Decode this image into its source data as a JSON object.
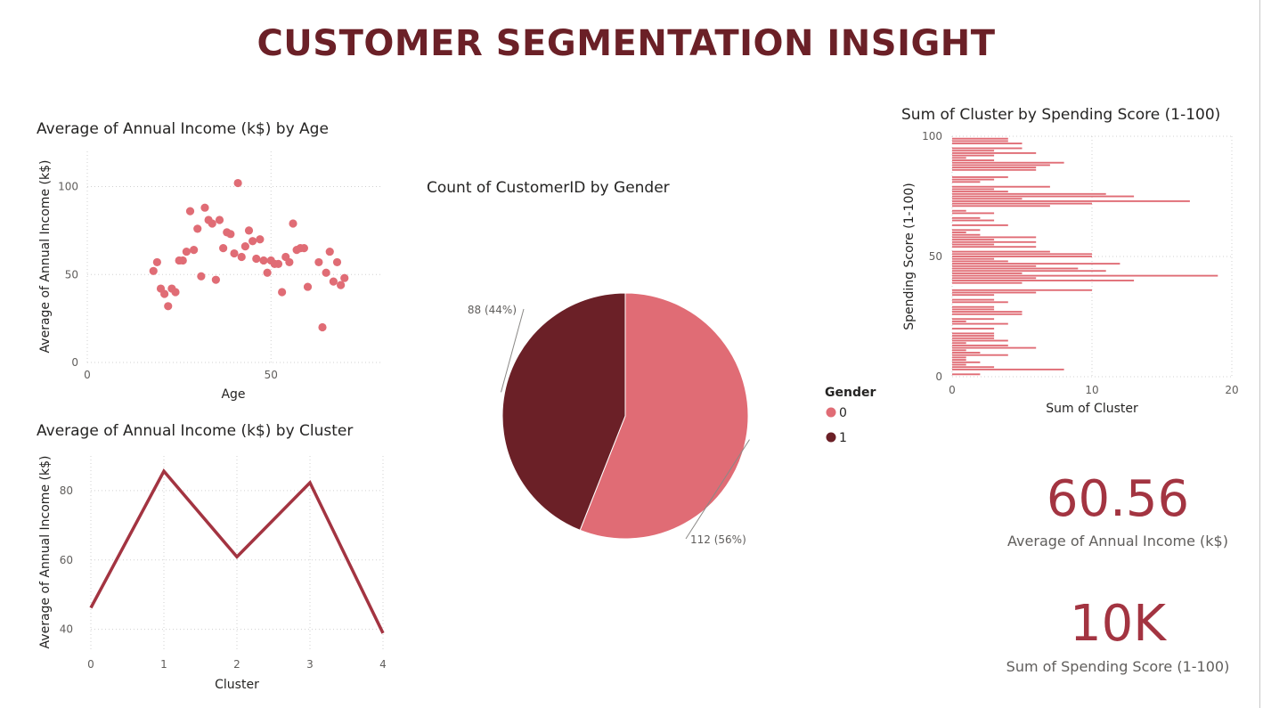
{
  "page": {
    "title": "CUSTOMER SEGMENTATION INSIGHT"
  },
  "colors": {
    "accent": "#e06c75",
    "dark": "#6b2027",
    "line": "#a33441",
    "title": "#6b2027"
  },
  "kpis": [
    {
      "value": "60.56",
      "label": "Average of Annual Income (k$)"
    },
    {
      "value": "10K",
      "label": "Sum of Spending Score (1-100)"
    }
  ],
  "chart_data": [
    {
      "type": "scatter",
      "title": "Average of Annual Income (k$) by Age",
      "xlabel": "Age",
      "ylabel": "Average of Annual Income (k$)",
      "xlim": [
        0,
        80
      ],
      "ylim": [
        0,
        120
      ],
      "xticks": [
        0,
        50
      ],
      "yticks": [
        0,
        50,
        100
      ],
      "grid": true,
      "points": [
        [
          18,
          52
        ],
        [
          19,
          57
        ],
        [
          20,
          42
        ],
        [
          21,
          39
        ],
        [
          22,
          32
        ],
        [
          23,
          42
        ],
        [
          24,
          40
        ],
        [
          25,
          58
        ],
        [
          26,
          58
        ],
        [
          27,
          63
        ],
        [
          28,
          86
        ],
        [
          29,
          64
        ],
        [
          30,
          76
        ],
        [
          31,
          49
        ],
        [
          32,
          88
        ],
        [
          33,
          81
        ],
        [
          34,
          79
        ],
        [
          35,
          47
        ],
        [
          36,
          81
        ],
        [
          37,
          65
        ],
        [
          38,
          74
        ],
        [
          39,
          73
        ],
        [
          40,
          62
        ],
        [
          41,
          102
        ],
        [
          42,
          60
        ],
        [
          43,
          66
        ],
        [
          44,
          75
        ],
        [
          45,
          69
        ],
        [
          46,
          59
        ],
        [
          47,
          70
        ],
        [
          48,
          58
        ],
        [
          49,
          51
        ],
        [
          50,
          58
        ],
        [
          51,
          56
        ],
        [
          52,
          56
        ],
        [
          53,
          40
        ],
        [
          54,
          60
        ],
        [
          55,
          57
        ],
        [
          56,
          79
        ],
        [
          57,
          64
        ],
        [
          58,
          65
        ],
        [
          59,
          65
        ],
        [
          60,
          43
        ],
        [
          63,
          57
        ],
        [
          64,
          20
        ],
        [
          65,
          51
        ],
        [
          66,
          63
        ],
        [
          67,
          46
        ],
        [
          68,
          57
        ],
        [
          69,
          44
        ],
        [
          70,
          48
        ]
      ]
    },
    {
      "type": "line",
      "title": "Average of Annual Income (k$) by Cluster",
      "xlabel": "Cluster",
      "ylabel": "Average of Annual Income (k$)",
      "x": [
        0,
        1,
        2,
        3,
        4
      ],
      "values": [
        46.2,
        85.6,
        60.9,
        82.3,
        38.9
      ],
      "xlim": [
        0,
        4
      ],
      "ylim": [
        34,
        90
      ],
      "yticks": [
        40,
        60,
        80
      ],
      "grid": true
    },
    {
      "type": "pie",
      "title": "Count of CustomerID by Gender",
      "legend_title": "Gender",
      "legend_position": "right",
      "slices": [
        {
          "label": "0",
          "value": 112,
          "data_label": "112 (56%)",
          "color": "#e06c75"
        },
        {
          "label": "1",
          "value": 88,
          "data_label": "88 (44%)",
          "color": "#6b2027"
        }
      ]
    },
    {
      "type": "bar",
      "orientation": "horizontal",
      "title": "Sum of Cluster by Spending Score (1-100)",
      "xlabel": "Sum of Cluster",
      "ylabel": "Spending Score (1-100)",
      "xlim": [
        0,
        20
      ],
      "ylim": [
        0,
        100
      ],
      "xticks": [
        0,
        10,
        20
      ],
      "yticks": [
        0,
        50,
        100
      ],
      "grid": true,
      "categories": [
        1,
        3,
        4,
        5,
        6,
        7,
        8,
        9,
        10,
        11,
        12,
        13,
        14,
        15,
        16,
        17,
        18,
        20,
        22,
        23,
        24,
        26,
        27,
        28,
        29,
        31,
        32,
        34,
        35,
        36,
        39,
        40,
        41,
        42,
        43,
        44,
        45,
        46,
        47,
        48,
        49,
        50,
        51,
        52,
        54,
        55,
        56,
        57,
        58,
        59,
        60,
        61,
        63,
        65,
        66,
        68,
        69,
        71,
        72,
        73,
        74,
        75,
        76,
        77,
        78,
        79,
        81,
        82,
        83,
        86,
        87,
        88,
        89,
        90,
        91,
        92,
        93,
        94,
        95,
        97,
        98,
        99
      ],
      "values": [
        2,
        8,
        3,
        1,
        2,
        1,
        1,
        4,
        2,
        1,
        6,
        4,
        1,
        4,
        3,
        3,
        3,
        3,
        4,
        1,
        3,
        5,
        5,
        3,
        3,
        4,
        3,
        3,
        6,
        10,
        5,
        13,
        6,
        19,
        5,
        11,
        9,
        6,
        12,
        4,
        3,
        10,
        10,
        7,
        6,
        3,
        6,
        3,
        6,
        2,
        1,
        2,
        4,
        3,
        2,
        3,
        1,
        7,
        10,
        17,
        5,
        13,
        11,
        4,
        3,
        7,
        2,
        3,
        4,
        6,
        6,
        7,
        8,
        3,
        1,
        3,
        6,
        3,
        5,
        5,
        4,
        4
      ]
    }
  ]
}
